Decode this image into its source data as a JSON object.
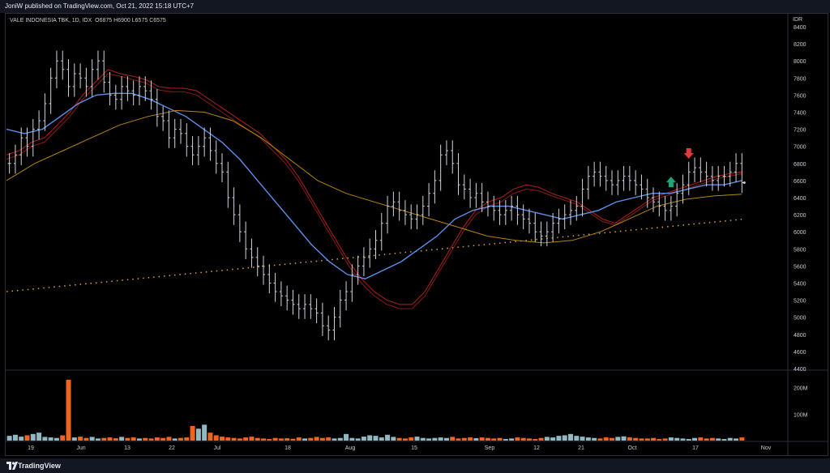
{
  "header": {
    "publisher": "JoniW published on TradingView.com, Oct 21, 2022 15:18 UTC+7"
  },
  "legend": {
    "symbol": "VALE INDONESIA TBK, 1D, IDX",
    "o_label": "O",
    "o_value": "6875",
    "h_label": "H",
    "h_value": "6900",
    "l_label": "L",
    "l_value": "6575",
    "c_label": "C",
    "c_value": "6575"
  },
  "currency": "IDR",
  "footer": {
    "brand": "TradingView"
  },
  "colors": {
    "background": "#000000",
    "bar": "#d1d4dc",
    "ema_fast": "#8b1a1a",
    "ema_slow": "#b21e1e",
    "ma_mid": "#5b8fe8",
    "ma_long": "#b8860b",
    "trend_dots": "#e0a13a",
    "volume_up": "#8fb8c3",
    "volume_down": "#f0641e",
    "arrow_up": "#1fa37a",
    "arrow_down": "#e03a3a"
  },
  "chart_data": {
    "type": "line",
    "title": "VALE INDONESIA TBK, 1D, IDX",
    "y_unit": "IDR",
    "y_ticks": [
      8400,
      8200,
      8000,
      7800,
      7600,
      7400,
      7200,
      7000,
      6800,
      6600,
      6400,
      6200,
      6000,
      5800,
      5600,
      5400,
      5200,
      5000,
      4800,
      4600,
      4400
    ],
    "ylim": [
      4400,
      8400
    ],
    "x_labels": [
      "19",
      "Jun",
      "13",
      "22",
      "Jul",
      "18",
      "Aug",
      "15",
      "Sep",
      "12",
      "21",
      "Oct",
      "17",
      "Nov"
    ],
    "volume_ticks": [
      "200M",
      "100M"
    ],
    "volume_range": [
      0,
      260000000
    ],
    "n_bars": 125,
    "price_closes": [
      6800,
      6900,
      7100,
      7000,
      7200,
      7300,
      7500,
      7800,
      8000,
      7900,
      7700,
      7850,
      7800,
      7700,
      7900,
      8000,
      7750,
      7600,
      7550,
      7700,
      7650,
      7600,
      7700,
      7650,
      7550,
      7350,
      7300,
      7100,
      7200,
      7150,
      7000,
      6900,
      7000,
      7100,
      6950,
      6800,
      6700,
      6400,
      6200,
      6000,
      5800,
      5700,
      5600,
      5500,
      5400,
      5300,
      5250,
      5200,
      5150,
      5100,
      5150,
      5100,
      5050,
      4900,
      4850,
      5000,
      5200,
      5300,
      5500,
      5600,
      5700,
      5800,
      5900,
      6100,
      6300,
      6350,
      6250,
      6200,
      6150,
      6200,
      6300,
      6450,
      6600,
      6900,
      6950,
      6800,
      6550,
      6500,
      6400,
      6450,
      6350,
      6300,
      6250,
      6200,
      6250,
      6300,
      6200,
      6150,
      6100,
      6000,
      5950,
      6000,
      6100,
      6150,
      6200,
      6250,
      6300,
      6500,
      6650,
      6700,
      6650,
      6600,
      6550,
      6600,
      6650,
      6600,
      6550,
      6500,
      6400,
      6350,
      6300,
      6250,
      6300,
      6450,
      6550,
      6700,
      6750,
      6700,
      6650,
      6600,
      6650,
      6650,
      6700,
      6800,
      6575
    ],
    "series": [
      {
        "name": "",
        "color": "#b21e1e",
        "values": [
          6900,
          6950,
          7050,
          7100,
          7250,
          7400,
          7600,
          7750,
          7900,
          7850,
          7820,
          7780,
          7700,
          7680,
          7680,
          7650,
          7550,
          7450,
          7350,
          7250,
          7150,
          7000,
          6850,
          6650,
          6400,
          6150,
          5900,
          5650,
          5450,
          5300,
          5200,
          5150,
          5150,
          5300,
          5550,
          5800,
          6050,
          6250,
          6350,
          6400,
          6500,
          6550,
          6520,
          6450,
          6400,
          6350,
          6250,
          6150,
          6100,
          6200,
          6300,
          6400,
          6450,
          6500,
          6550,
          6600,
          6650,
          6680,
          6700
        ]
      },
      {
        "name": "",
        "color": "#8b1a1a",
        "values": [
          6850,
          6900,
          7000,
          7050,
          7200,
          7350,
          7550,
          7700,
          7850,
          7820,
          7780,
          7740,
          7660,
          7640,
          7640,
          7600,
          7500,
          7400,
          7300,
          7200,
          7100,
          6950,
          6800,
          6600,
          6350,
          6100,
          5850,
          5600,
          5400,
          5250,
          5150,
          5100,
          5100,
          5250,
          5500,
          5750,
          6000,
          6200,
          6300,
          6350,
          6450,
          6500,
          6480,
          6420,
          6370,
          6320,
          6220,
          6120,
          6080,
          6170,
          6270,
          6370,
          6420,
          6470,
          6520,
          6570,
          6620,
          6650,
          6680
        ]
      },
      {
        "name": "",
        "color": "#5b8fe8",
        "values": [
          7200,
          7150,
          7200,
          7350,
          7500,
          7600,
          7620,
          7620,
          7550,
          7450,
          7350,
          7200,
          7050,
          6850,
          6600,
          6350,
          6100,
          5850,
          5650,
          5500,
          5450,
          5550,
          5650,
          5800,
          5950,
          6150,
          6250,
          6300,
          6300,
          6250,
          6200,
          6150,
          6200,
          6250,
          6350,
          6400,
          6450,
          6450,
          6500,
          6550,
          6550,
          6600
        ]
      },
      {
        "name": "",
        "color": "#b8860b",
        "values": [
          6600,
          6800,
          6950,
          7100,
          7250,
          7350,
          7420,
          7400,
          7300,
          7100,
          6850,
          6600,
          6450,
          6350,
          6250,
          6150,
          6050,
          5950,
          5900,
          5870,
          5900,
          6000,
          6150,
          6300,
          6380,
          6420,
          6440
        ]
      }
    ],
    "trend_line": {
      "name": "",
      "start": 5300,
      "end": 6150,
      "style": "dotted"
    },
    "signals": [
      {
        "type": "buy",
        "bar_index": 112,
        "value": 6550,
        "color": "#1fa37a"
      },
      {
        "type": "sell",
        "bar_index": 115,
        "value": 6950,
        "color": "#e03a3a"
      }
    ],
    "volume": [
      18,
      22,
      15,
      20,
      25,
      30,
      14,
      12,
      10,
      20,
      230,
      12,
      15,
      10,
      14,
      8,
      10,
      12,
      9,
      14,
      10,
      12,
      8,
      10,
      8,
      12,
      10,
      14,
      8,
      10,
      12,
      55,
      45,
      60,
      30,
      20,
      15,
      12,
      10,
      8,
      12,
      15,
      10,
      8,
      6,
      10,
      8,
      9,
      7,
      12,
      8,
      10,
      14,
      10,
      12,
      8,
      10,
      25,
      10,
      8,
      15,
      20,
      18,
      12,
      22,
      14,
      10,
      8,
      12,
      15,
      10,
      8,
      10,
      12,
      10,
      14,
      8,
      10,
      12,
      9,
      12,
      10,
      8,
      10,
      6,
      8,
      12,
      10,
      8,
      6,
      10,
      14,
      12,
      18,
      20,
      25,
      18,
      15,
      12,
      10,
      8,
      12,
      10,
      14,
      16,
      12,
      10,
      8,
      8,
      10,
      6,
      8,
      12,
      10,
      8,
      6,
      10,
      12,
      8,
      10,
      8,
      6,
      10,
      8,
      12
    ],
    "volume_unit_scale": 1000000
  }
}
